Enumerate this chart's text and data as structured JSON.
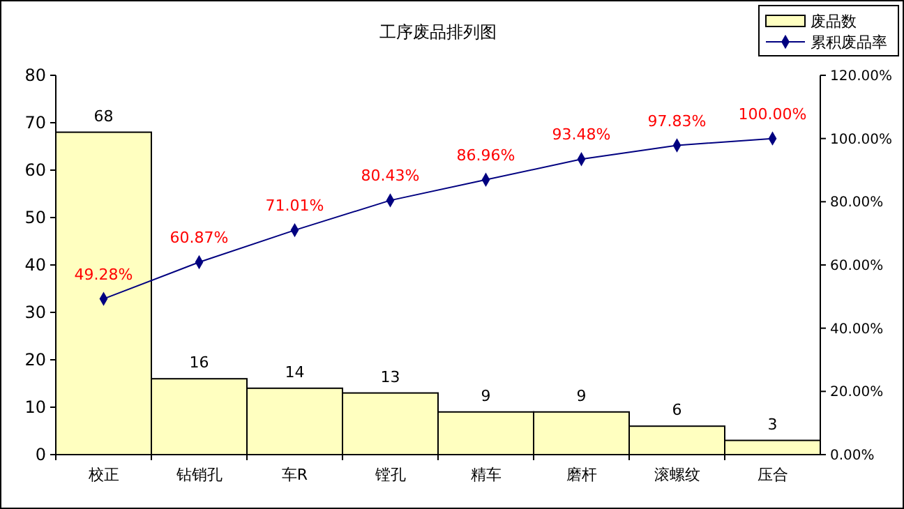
{
  "chart_data": {
    "type": "bar",
    "title": "工序废品排列图",
    "categories": [
      "校正",
      "钻销孔",
      "车R",
      "镗孔",
      "精车",
      "磨杆",
      "滚螺纹",
      "压合"
    ],
    "series": [
      {
        "name": "废品数",
        "color": "#ffffc0",
        "values": [
          68,
          16,
          14,
          13,
          9,
          9,
          6,
          3
        ],
        "value_labels": [
          "68",
          "16",
          "14",
          "13",
          "9",
          "9",
          "6",
          "3"
        ]
      },
      {
        "name": "累积废品率",
        "type": "line",
        "axis": "y2",
        "color": "#000080",
        "values": [
          49.28,
          60.87,
          71.01,
          80.43,
          86.96,
          93.48,
          97.83,
          100.0
        ],
        "value_labels": [
          "49.28%",
          "60.87%",
          "71.01%",
          "80.43%",
          "86.96%",
          "93.48%",
          "97.83%",
          "100.00%"
        ]
      }
    ],
    "ylim": [
      0,
      80
    ],
    "yticks": [
      0,
      10,
      20,
      30,
      40,
      50,
      60,
      70,
      80
    ],
    "y2lim": [
      0,
      120
    ],
    "y2ticks": [
      {
        "value": 0,
        "label": "0.00%"
      },
      {
        "value": 20,
        "label": "20.00%"
      },
      {
        "value": 40,
        "label": "40.00%"
      },
      {
        "value": 60,
        "label": "60.00%"
      },
      {
        "value": 80,
        "label": "80.00%"
      },
      {
        "value": 100,
        "label": "100.00%"
      },
      {
        "value": 120,
        "label": "120.00%"
      }
    ],
    "marker": "diamond",
    "legend": "top right",
    "grid": false
  }
}
